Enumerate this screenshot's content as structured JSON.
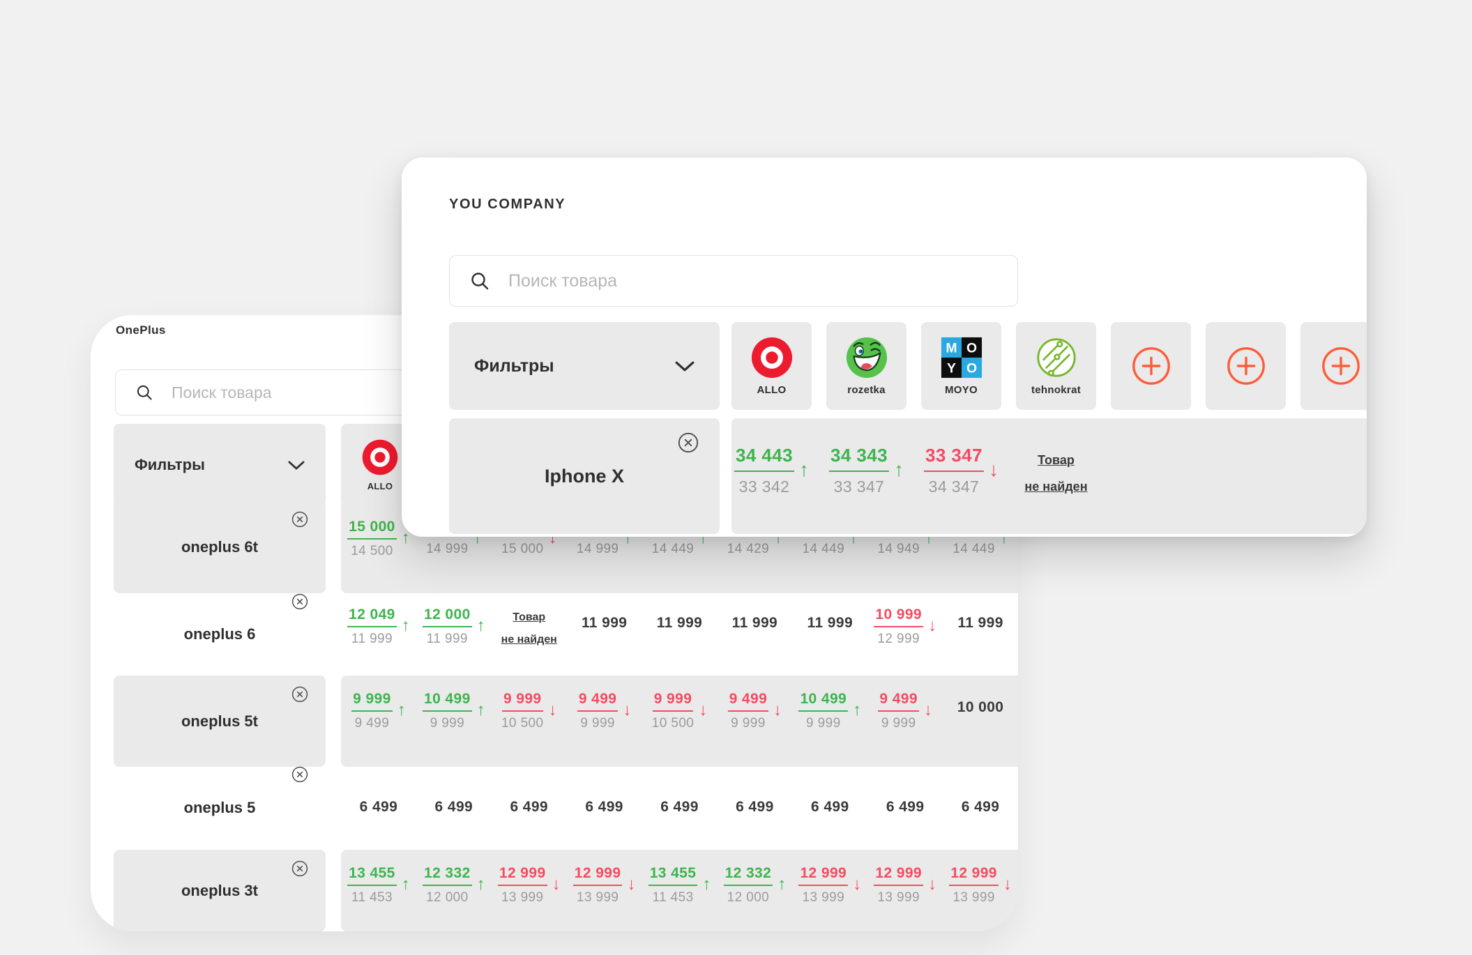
{
  "colors": {
    "green": "#3cb54c",
    "red": "#f44b62",
    "orange": "#ff5b39",
    "gray_text": "#9b9b9b",
    "dark_text": "#2f2f2f",
    "tile_gray": "#eaeaea",
    "page_bg": "#f1f1f1"
  },
  "strings": {
    "up_arrow": "↑",
    "down_arrow": "↓",
    "not_found_line1": "Товар",
    "not_found_line2": "не найден"
  },
  "front_card": {
    "title": "YOU COMPANY",
    "search_placeholder": "Поиск товара",
    "filters_label": "Фильтры",
    "stores": [
      {
        "name": "ALLO",
        "logo": "allo"
      },
      {
        "name": "rozetka",
        "logo": "rozetka"
      },
      {
        "name": "MOYO",
        "logo": "moyo"
      },
      {
        "name": "tehnokrat",
        "logo": "tehnokrat"
      },
      {
        "name": "",
        "logo": "add"
      },
      {
        "name": "",
        "logo": "add"
      },
      {
        "name": "",
        "logo": "add"
      }
    ],
    "product": {
      "label": "Iphone X"
    },
    "cells": [
      {
        "type": "pair",
        "top": "34 443",
        "bottom": "33 342",
        "trend": "up"
      },
      {
        "type": "pair",
        "top": "34 343",
        "bottom": "33 347",
        "trend": "up"
      },
      {
        "type": "pair",
        "top": "33 347",
        "bottom": "34 347",
        "trend": "down"
      },
      {
        "type": "nf"
      },
      {
        "type": "empty"
      },
      {
        "type": "empty"
      },
      {
        "type": "empty"
      }
    ]
  },
  "back_card": {
    "title": "OnePlus",
    "search_placeholder": "Поиск товара",
    "filters_label": "Фильтры",
    "stores": [
      {
        "name": "ALLO",
        "logo": "allo"
      }
    ],
    "rows": [
      {
        "label": "oneplus 6t",
        "shaded": true,
        "cells": [
          {
            "type": "pair",
            "top": "15 000",
            "bottom": "14 500",
            "trend": "up"
          },
          {
            "type": "bar",
            "bottom": "14 999",
            "trend": "up"
          },
          {
            "type": "bar",
            "bottom": "15 000",
            "trend": "down"
          },
          {
            "type": "bar",
            "bottom": "14 999",
            "trend": "up"
          },
          {
            "type": "bar",
            "bottom": "14 449",
            "trend": "up"
          },
          {
            "type": "bar",
            "bottom": "14 429",
            "trend": "up"
          },
          {
            "type": "bar",
            "bottom": "14 449",
            "trend": "up"
          },
          {
            "type": "bar",
            "bottom": "14 949",
            "trend": "up"
          },
          {
            "type": "bar",
            "bottom": "14 449",
            "trend": "up"
          }
        ]
      },
      {
        "label": "oneplus 6",
        "shaded": false,
        "cells": [
          {
            "type": "pair",
            "top": "12 049",
            "bottom": "11 999",
            "trend": "up"
          },
          {
            "type": "pair",
            "top": "12 000",
            "bottom": "11 999",
            "trend": "up"
          },
          {
            "type": "nf"
          },
          {
            "type": "plain",
            "value": "11 999"
          },
          {
            "type": "plain",
            "value": "11 999"
          },
          {
            "type": "plain",
            "value": "11 999"
          },
          {
            "type": "plain",
            "value": "11 999"
          },
          {
            "type": "pair",
            "top": "10 999",
            "bottom": "12 999",
            "trend": "down"
          },
          {
            "type": "plain",
            "value": "11 999"
          }
        ]
      },
      {
        "label": "oneplus 5t",
        "shaded": true,
        "cells": [
          {
            "type": "pair",
            "top": "9 999",
            "bottom": "9 499",
            "trend": "up"
          },
          {
            "type": "pair",
            "top": "10 499",
            "bottom": "9 999",
            "trend": "up"
          },
          {
            "type": "pair",
            "top": "9 999",
            "bottom": "10 500",
            "trend": "down"
          },
          {
            "type": "pair",
            "top": "9 499",
            "bottom": "9 999",
            "trend": "down"
          },
          {
            "type": "pair",
            "top": "9 999",
            "bottom": "10 500",
            "trend": "down"
          },
          {
            "type": "pair",
            "top": "9 499",
            "bottom": "9 999",
            "trend": "down"
          },
          {
            "type": "pair",
            "top": "10 499",
            "bottom": "9 999",
            "trend": "up"
          },
          {
            "type": "pair",
            "top": "9 499",
            "bottom": "9 999",
            "trend": "down"
          },
          {
            "type": "plain",
            "value": "10 000"
          }
        ]
      },
      {
        "label": "oneplus 5",
        "shaded": false,
        "cells": [
          {
            "type": "plain",
            "value": "6 499"
          },
          {
            "type": "plain",
            "value": "6 499"
          },
          {
            "type": "plain",
            "value": "6 499"
          },
          {
            "type": "plain",
            "value": "6 499"
          },
          {
            "type": "plain",
            "value": "6 499"
          },
          {
            "type": "plain",
            "value": "6 499"
          },
          {
            "type": "plain",
            "value": "6 499"
          },
          {
            "type": "plain",
            "value": "6 499"
          },
          {
            "type": "plain",
            "value": "6 499"
          }
        ]
      },
      {
        "label": "oneplus 3t",
        "shaded": true,
        "cells": [
          {
            "type": "pair",
            "top": "13 455",
            "bottom": "11 453",
            "trend": "up"
          },
          {
            "type": "pair",
            "top": "12 332",
            "bottom": "12 000",
            "trend": "up"
          },
          {
            "type": "pair",
            "top": "12 999",
            "bottom": "13 999",
            "trend": "down"
          },
          {
            "type": "pair",
            "top": "12 999",
            "bottom": "13 999",
            "trend": "down"
          },
          {
            "type": "pair",
            "top": "13 455",
            "bottom": "11 453",
            "trend": "up"
          },
          {
            "type": "pair",
            "top": "12 332",
            "bottom": "12 000",
            "trend": "up"
          },
          {
            "type": "pair",
            "top": "12 999",
            "bottom": "13 999",
            "trend": "down"
          },
          {
            "type": "pair",
            "top": "12 999",
            "bottom": "13 999",
            "trend": "down"
          },
          {
            "type": "pair",
            "top": "12 999",
            "bottom": "13 999",
            "trend": "down"
          }
        ]
      }
    ]
  }
}
